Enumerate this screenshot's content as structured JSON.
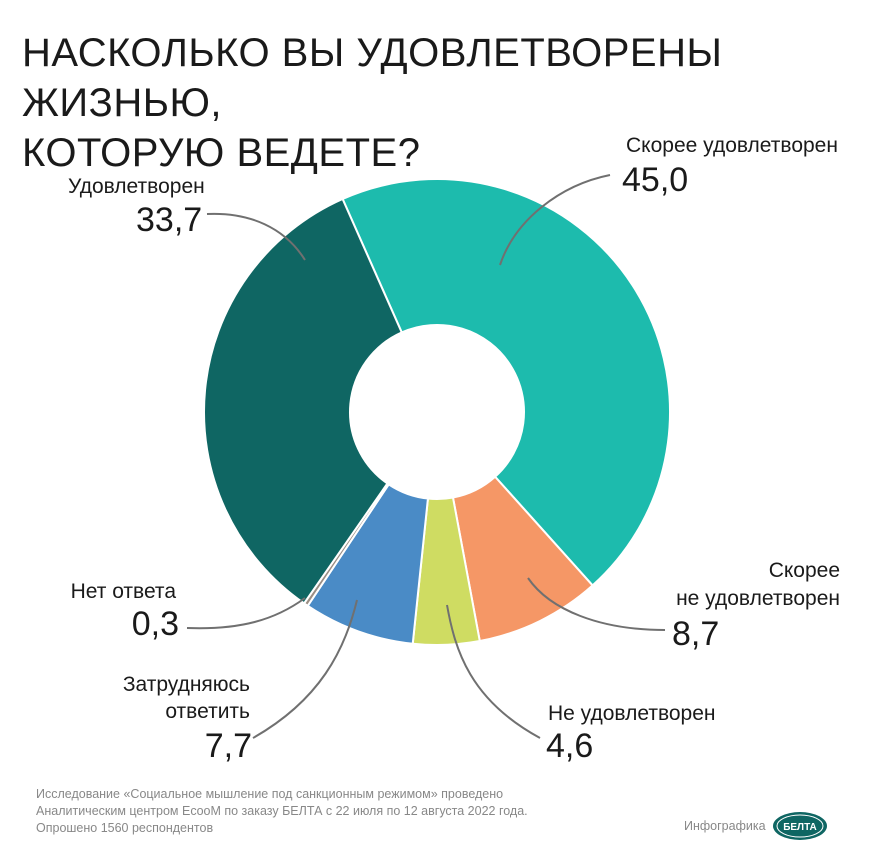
{
  "chart_data": {
    "type": "pie",
    "title_lines": [
      "НАСКОЛЬКО ВЫ УДОВЛЕТВОРЕНЫ ЖИЗНЬЮ,",
      "КОТОРУЮ ВЕДЕТЕ?"
    ],
    "slices": [
      {
        "label": "Скорее удовлетворен",
        "value": 45.0,
        "display": "45,0",
        "color": "#1dbbad"
      },
      {
        "label": "Скорее не удовлетворен",
        "label_lines": [
          "Скорее",
          "не удовлетворен"
        ],
        "value": 8.7,
        "display": "8,7",
        "color": "#f59766"
      },
      {
        "label": "Не удовлетворен",
        "value": 4.6,
        "display": "4,6",
        "color": "#cfdc62"
      },
      {
        "label": "Затрудняюсь ответить",
        "label_lines": [
          "Затрудняюсь",
          "ответить"
        ],
        "value": 7.7,
        "display": "7,7",
        "color": "#4a8bc6"
      },
      {
        "label": "Нет ответа",
        "value": 0.3,
        "display": "0,3",
        "color": "#9b8e84"
      },
      {
        "label": "Удовлетворен",
        "value": 33.7,
        "display": "33,7",
        "color": "#0f6663"
      }
    ]
  },
  "footer": {
    "lines": [
      "Исследование «Социальное мышление под санкционным режимом» проведено",
      "Аналитическим центром EcooM по заказу БЕЛТА с 22 июля по 12 августа 2022 года.",
      "Опрошено 1560 респондентов"
    ],
    "credit": "Инфографика",
    "logo": "БЕЛТА"
  }
}
